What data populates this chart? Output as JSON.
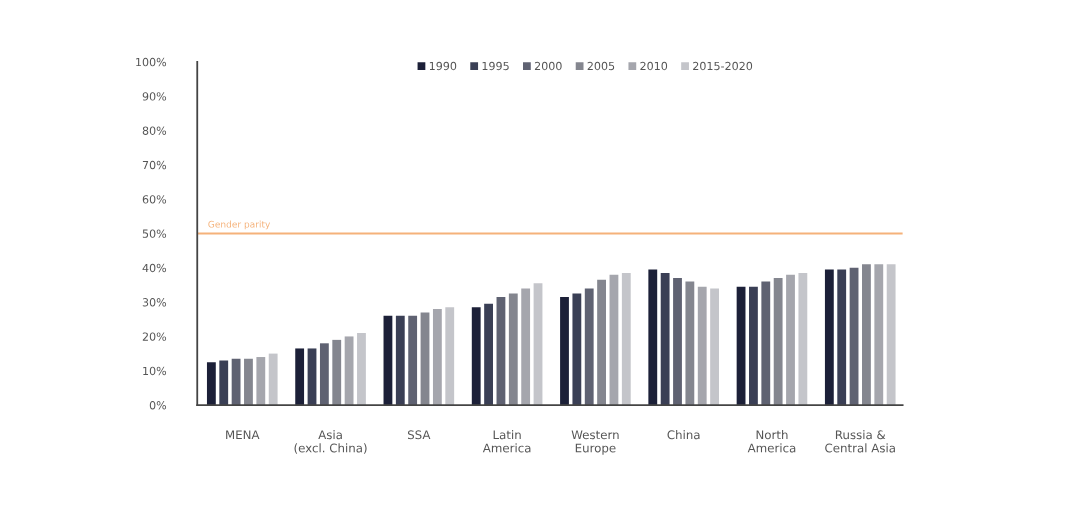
{
  "chart_data": {
    "type": "bar",
    "categories": [
      "MENA",
      "Asia\n(excl. China)",
      "SSA",
      "Latin\nAmerica",
      "Western\nEurope",
      "China",
      "North\nAmerica",
      "Russia &\nCentral Asia"
    ],
    "series": [
      {
        "name": "1990",
        "color": "#1c2038",
        "values": [
          12.5,
          16.5,
          26,
          28.5,
          31.5,
          39.5,
          34.5,
          39.5
        ]
      },
      {
        "name": "1995",
        "color": "#3a3f55",
        "values": [
          13,
          16.5,
          26,
          29.5,
          32.5,
          38.5,
          34.5,
          39.5
        ]
      },
      {
        "name": "2000",
        "color": "#5f6272",
        "values": [
          13.5,
          18,
          26,
          31.5,
          34,
          37,
          36,
          40
        ]
      },
      {
        "name": "2005",
        "color": "#84868f",
        "values": [
          13.5,
          19,
          27,
          32.5,
          36.5,
          36,
          37,
          41
        ]
      },
      {
        "name": "2010",
        "color": "#a5a6ad",
        "values": [
          14,
          20,
          28,
          34,
          38,
          34.5,
          38,
          41
        ]
      },
      {
        "name": "2015-2020",
        "color": "#c4c5ca",
        "values": [
          15,
          21,
          28.5,
          35.5,
          38.5,
          34,
          38.5,
          41
        ]
      }
    ],
    "ylim": [
      0,
      100
    ],
    "yticks": [
      {
        "value": 0,
        "label": "0%"
      },
      {
        "value": 10,
        "label": "10%"
      },
      {
        "value": 20,
        "label": "20%"
      },
      {
        "value": 30,
        "label": "30%"
      },
      {
        "value": 40,
        "label": "40%"
      },
      {
        "value": 50,
        "label": "50%"
      },
      {
        "value": 60,
        "label": "60%"
      },
      {
        "value": 70,
        "label": "70%"
      },
      {
        "value": 80,
        "label": "80%"
      },
      {
        "value": 90,
        "label": "90%"
      },
      {
        "value": 100,
        "label": "100%"
      }
    ],
    "ref_lines": [
      {
        "axis": "y",
        "value": 50,
        "label": "Gender parity",
        "color": "#f5b27a",
        "line_style": "solid"
      }
    ],
    "legend": "top",
    "grid": false
  }
}
